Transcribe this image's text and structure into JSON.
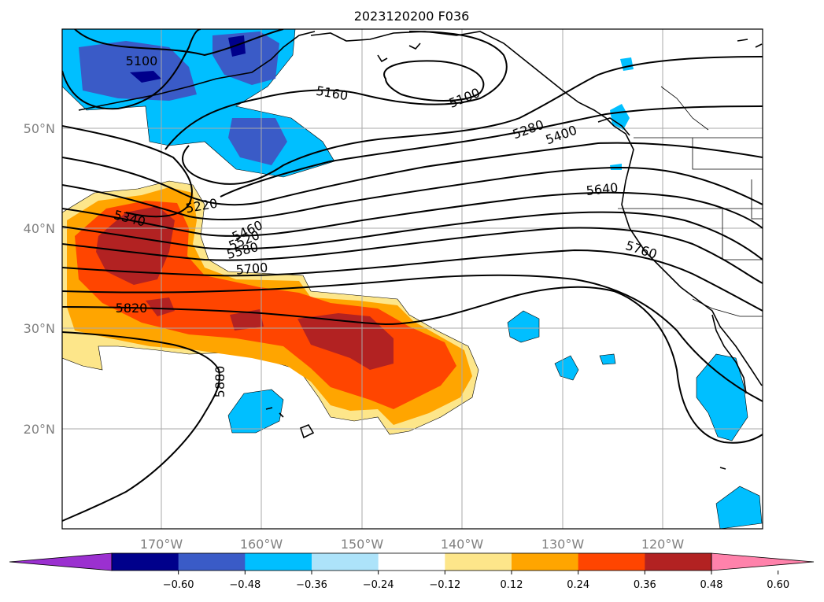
{
  "title": "2023120200 F036",
  "map": {
    "lat_labels": [
      "50°N",
      "40°N",
      "30°N",
      "20°N"
    ],
    "lon_labels": [
      "170°W",
      "160°W",
      "150°W",
      "140°W",
      "130°W",
      "120°W"
    ],
    "contour_labels": [
      "5100",
      "5160",
      "5100",
      "5280",
      "5400",
      "5220",
      "5340",
      "5460",
      "5520",
      "5580",
      "5640",
      "5700",
      "5760",
      "5820",
      "5880"
    ]
  },
  "colorbar": {
    "ticks": [
      "−0.60",
      "−0.48",
      "−0.36",
      "−0.24",
      "−0.12",
      "0.12",
      "0.24",
      "0.36",
      "0.48",
      "0.60"
    ],
    "colors": [
      "#9b30d0",
      "#00008b",
      "#3a5bc7",
      "#00bfff",
      "#ade3fa",
      "#ffffff",
      "#fde68a",
      "#ffa500",
      "#ff4500",
      "#b22222",
      "#ff82ab"
    ]
  }
}
